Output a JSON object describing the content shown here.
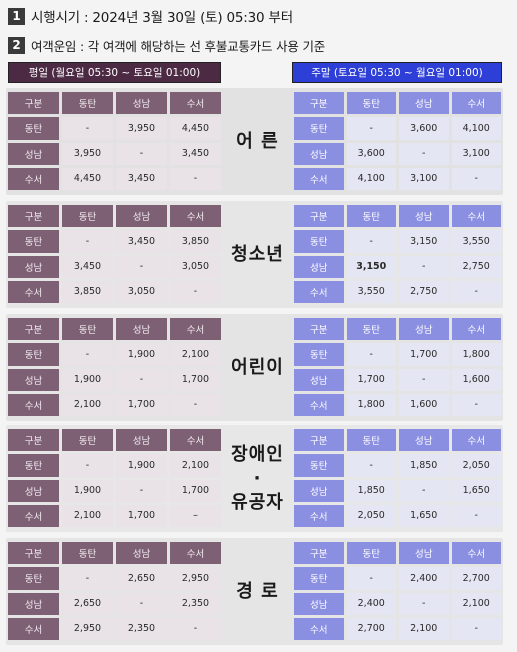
{
  "line1": {
    "num": "1",
    "text": "시행시기 : 2024년 3월 30일 (토) 05:30 부터"
  },
  "line2": {
    "num": "2",
    "text": "여객운임 : 각 여객에 해당하는 선 후불교통카드 사용 기준"
  },
  "weekday_header": "평일 (월요일 05:30 ~ 토요일 01:00)",
  "weekend_header": "주말 (토요일 05:30 ~ 월요일 01:00)",
  "blocks": [
    {
      "label": [
        "어 른"
      ],
      "weekday": {
        "head": [
          "구분",
          "동탄",
          "성남",
          "수서"
        ],
        "rows": [
          [
            "동탄",
            "-",
            "3,950",
            "4,450"
          ],
          [
            "성남",
            "3,950",
            "-",
            "3,450"
          ],
          [
            "수서",
            "4,450",
            "3,450",
            "-"
          ]
        ]
      },
      "weekend": {
        "head": [
          "구분",
          "동탄",
          "성남",
          "수서"
        ],
        "rows": [
          [
            "동탄",
            "-",
            "3,600",
            "4,100"
          ],
          [
            "성남",
            "3,600",
            "-",
            "3,100"
          ],
          [
            "수서",
            "4,100",
            "3,100",
            "-"
          ]
        ]
      }
    },
    {
      "label": [
        "청소년"
      ],
      "weekday": {
        "head": [
          "구분",
          "동탄",
          "성남",
          "수서"
        ],
        "rows": [
          [
            "동탄",
            "-",
            "3,450",
            "3,850"
          ],
          [
            "성남",
            "3,450",
            "-",
            "3,050"
          ],
          [
            "수서",
            "3,850",
            "3,050",
            "-"
          ]
        ]
      },
      "weekend": {
        "head": [
          "구분",
          "동탄",
          "성남",
          "수서"
        ],
        "rows": [
          [
            "동탄",
            "-",
            "3,150",
            "3,550"
          ],
          [
            "성남",
            "3,150",
            "-",
            "2,750"
          ],
          [
            "수서",
            "3,550",
            "2,750",
            "-"
          ]
        ]
      }
    },
    {
      "label": [
        "어린이"
      ],
      "weekday": {
        "head": [
          "구분",
          "동탄",
          "성남",
          "수서"
        ],
        "rows": [
          [
            "동탄",
            "-",
            "1,900",
            "2,100"
          ],
          [
            "성남",
            "1,900",
            "-",
            "1,700"
          ],
          [
            "수서",
            "2,100",
            "1,700",
            "-"
          ]
        ]
      },
      "weekend": {
        "head": [
          "구분",
          "동탄",
          "성남",
          "수서"
        ],
        "rows": [
          [
            "동탄",
            "-",
            "1,700",
            "1,800"
          ],
          [
            "성남",
            "1,700",
            "-",
            "1,600"
          ],
          [
            "수서",
            "1,800",
            "1,600",
            "-"
          ]
        ]
      }
    },
    {
      "label": [
        "장애인",
        "·",
        "유공자"
      ],
      "weekday": {
        "head": [
          "구분",
          "동탄",
          "성남",
          "수서"
        ],
        "rows": [
          [
            "동탄",
            "-",
            "1,900",
            "2,100"
          ],
          [
            "성남",
            "1,900",
            "-",
            "1,700"
          ],
          [
            "수서",
            "2,100",
            "1,700",
            "–"
          ]
        ]
      },
      "weekend": {
        "head": [
          "구분",
          "동탄",
          "성남",
          "수서"
        ],
        "rows": [
          [
            "동탄",
            "-",
            "1,850",
            "2,050"
          ],
          [
            "성남",
            "1,850",
            "-",
            "1,650"
          ],
          [
            "수서",
            "2,050",
            "1,650",
            "-"
          ]
        ]
      }
    },
    {
      "label": [
        "경 로"
      ],
      "weekday": {
        "head": [
          "구분",
          "동탄",
          "성남",
          "수서"
        ],
        "rows": [
          [
            "동탄",
            "-",
            "2,650",
            "2,950"
          ],
          [
            "성남",
            "2,650",
            "-",
            "2,350"
          ],
          [
            "수서",
            "2,950",
            "2,350",
            "-"
          ]
        ]
      },
      "weekend": {
        "head": [
          "구분",
          "동탄",
          "성남",
          "수서"
        ],
        "rows": [
          [
            "동탄",
            "-",
            "2,400",
            "2,700"
          ],
          [
            "성남",
            "2,400",
            "-",
            "2,100"
          ],
          [
            "수서",
            "2,700",
            "2,100",
            "-"
          ]
        ]
      }
    }
  ],
  "colors": {
    "weekday_header": "#4d2a43",
    "weekend_header": "#2d3fd6"
  }
}
